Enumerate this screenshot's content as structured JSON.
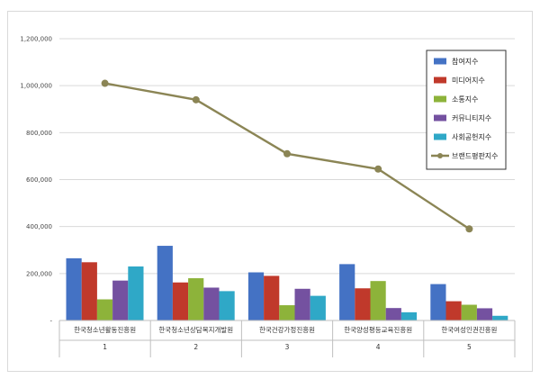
{
  "chart_data": {
    "type": "bar",
    "categories": [
      "1",
      "2",
      "3",
      "4",
      "5"
    ],
    "category_labels": [
      "한국청소년활동진흥원",
      "한국청소년상담복지개발원",
      "한국건강가정진흥원",
      "한국양성평등교육진흥원",
      "한국여성인권진흥원"
    ],
    "series": [
      {
        "name": "참여지수",
        "type": "bar",
        "color": "#4472C4",
        "values": [
          265000,
          318000,
          205000,
          240000,
          155000
        ]
      },
      {
        "name": "미디어지수",
        "type": "bar",
        "color": "#C0392B",
        "values": [
          248000,
          162000,
          190000,
          137000,
          82000
        ]
      },
      {
        "name": "소통지수",
        "type": "bar",
        "color": "#8DB33A",
        "values": [
          90000,
          180000,
          65000,
          168000,
          67000
        ]
      },
      {
        "name": "커뮤니티지수",
        "type": "bar",
        "color": "#7451A0",
        "values": [
          170000,
          140000,
          135000,
          53000,
          52000
        ]
      },
      {
        "name": "사회공헌지수",
        "type": "bar",
        "color": "#2FA8C7",
        "values": [
          230000,
          125000,
          105000,
          35000,
          20000
        ]
      },
      {
        "name": "브랜드평판지수",
        "type": "line",
        "color": "#8B8555",
        "values": [
          1010000,
          940000,
          710000,
          645000,
          390000
        ]
      }
    ],
    "ylim": [
      0,
      1200000
    ],
    "yticks": [
      0,
      200000,
      400000,
      600000,
      800000,
      1000000,
      1200000
    ],
    "ytick_labels": [
      "-",
      "200,000",
      "400,000",
      "600,000",
      "800,000",
      "1,000,000",
      "1,200,000"
    ],
    "grid": true,
    "legend": "top-right"
  }
}
